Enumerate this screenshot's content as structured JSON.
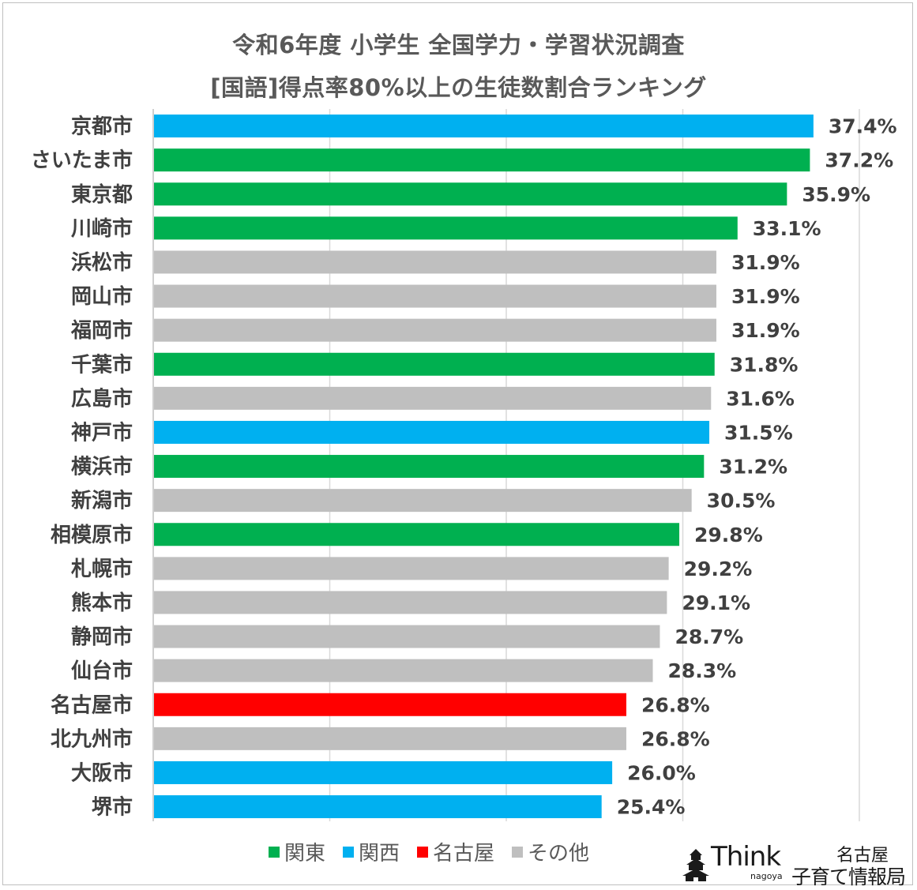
{
  "chart_data": {
    "type": "bar",
    "orientation": "horizontal",
    "title": "令和6年度 小学生 全国学力・学習状況調査",
    "subtitle": "[国語]得点率80%以上の生徒数割合ランキング",
    "categories": [
      "京都市",
      "さいたま市",
      "東京都",
      "川崎市",
      "浜松市",
      "岡山市",
      "福岡市",
      "千葉市",
      "広島市",
      "神戸市",
      "横浜市",
      "新潟市",
      "相模原市",
      "札幌市",
      "熊本市",
      "静岡市",
      "仙台市",
      "名古屋市",
      "北九州市",
      "大阪市",
      "堺市"
    ],
    "values": [
      37.4,
      37.2,
      35.9,
      33.1,
      31.9,
      31.9,
      31.9,
      31.8,
      31.6,
      31.5,
      31.2,
      30.5,
      29.8,
      29.2,
      29.1,
      28.7,
      28.3,
      26.8,
      26.8,
      26.0,
      25.4
    ],
    "value_labels": [
      "37.4%",
      "37.2%",
      "35.9%",
      "33.1%",
      "31.9%",
      "31.9%",
      "31.9%",
      "31.8%",
      "31.6%",
      "31.5%",
      "31.2%",
      "30.5%",
      "29.8%",
      "29.2%",
      "29.1%",
      "28.7%",
      "28.3%",
      "26.8%",
      "26.8%",
      "26.0%",
      "25.4%"
    ],
    "groups": [
      "関西",
      "関東",
      "関東",
      "関東",
      "その他",
      "その他",
      "その他",
      "関東",
      "その他",
      "関西",
      "関東",
      "その他",
      "関東",
      "その他",
      "その他",
      "その他",
      "その他",
      "名古屋",
      "その他",
      "関西",
      "関西"
    ],
    "xlim": [
      0,
      40
    ],
    "grid": true,
    "legend_position": "bottom",
    "legend": [
      {
        "name": "関東",
        "color": "#00b050"
      },
      {
        "name": "関西",
        "color": "#00b0f0"
      },
      {
        "name": "名古屋",
        "color": "#ff0000"
      },
      {
        "name": "その他",
        "color": "#bfbfbf"
      }
    ],
    "colors": {
      "関東": "#00b050",
      "関西": "#00b0f0",
      "名古屋": "#ff0000",
      "その他": "#bfbfbf",
      "grid": "#d9d9d9",
      "text": "#404040"
    }
  },
  "logo": {
    "brand": "Think",
    "brand_sub": "nagoya",
    "city": "名古屋",
    "name": "子育て情報局"
  }
}
